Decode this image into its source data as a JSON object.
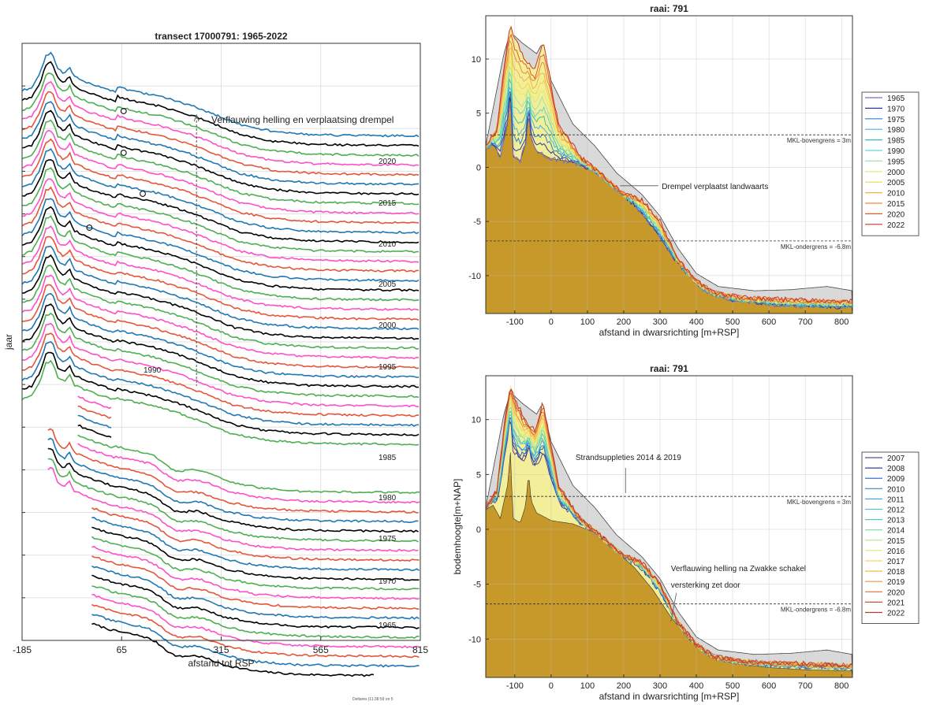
{
  "footer": "Deltares |11:38:59 on 5",
  "chart_data": [
    {
      "id": "transect",
      "type": "line",
      "title": "transect 17000791: 1965-2022",
      "xlabel": "afstand tot RSP",
      "ylabel": "jaar",
      "xticks": [
        -185,
        65,
        315,
        565,
        815
      ],
      "xlim": [
        -185,
        815
      ],
      "year_labels": [
        "2020",
        "2015",
        "2010",
        "2005",
        "2000",
        "1995",
        "1990",
        "1985",
        "1980",
        "1975",
        "1970",
        "1965"
      ],
      "annotation": "Verflauwing helling en verplaatsing drempel",
      "grid": true,
      "series_colors": [
        "#000000",
        "#1f77b4",
        "#e6553a",
        "#ff4fc8",
        "#4caf50"
      ]
    },
    {
      "id": "raai-top",
      "type": "area",
      "title": "raai: 791",
      "xlabel": "afstand in dwarsrichting [m+RSP]",
      "ylabel": "",
      "xticks": [
        -100,
        0,
        100,
        200,
        300,
        400,
        500,
        600,
        700,
        800
      ],
      "yticks": [
        10,
        5,
        0,
        -5,
        -10
      ],
      "xlim": [
        -180,
        830
      ],
      "ylim": [
        -13.5,
        14
      ],
      "hlines": [
        {
          "y": 3,
          "label": "MKL-bovengrens = 3m"
        },
        {
          "y": -6.8,
          "label": "MKL-ondergrens = -6.8m"
        }
      ],
      "annotation": "Drempel verplaatst landwaarts",
      "legend_position": "right",
      "legend": [
        "1965",
        "1970",
        "1975",
        "1980",
        "1985",
        "1990",
        "1995",
        "2000",
        "2005",
        "2010",
        "2015",
        "2020",
        "2022"
      ],
      "legend_colors": [
        "#7b68c8",
        "#2b3a9a",
        "#2c7fd8",
        "#3fb6e6",
        "#35c0b8",
        "#5fd6c9",
        "#9fe3a8",
        "#e5e96a",
        "#f1d54a",
        "#f0b24a",
        "#ec8a3a",
        "#e05a2e",
        "#c8362a"
      ],
      "grid": true
    },
    {
      "id": "raai-bottom",
      "type": "area",
      "title": "raai: 791",
      "xlabel": "afstand in dwarsrichting [m+RSP]",
      "ylabel": "bodemhoogte[m+NAP]",
      "xticks": [
        -100,
        0,
        100,
        200,
        300,
        400,
        500,
        600,
        700,
        800
      ],
      "yticks": [
        10,
        5,
        0,
        -5,
        -10
      ],
      "xlim": [
        -180,
        830
      ],
      "ylim": [
        -13.5,
        14
      ],
      "hlines": [
        {
          "y": 3,
          "label": "MKL-bovengrens = 3m"
        },
        {
          "y": -6.8,
          "label": "MKL-ondergrens = -6.8m"
        }
      ],
      "annotations": [
        "Strandsuppleties 2014 & 2019",
        "Verflauwing helling na Zwakke schakel",
        "versterking zet door"
      ],
      "legend_position": "right",
      "legend": [
        "2007",
        "2008",
        "2009",
        "2010",
        "2011",
        "2012",
        "2013",
        "2014",
        "2015",
        "2016",
        "2017",
        "2018",
        "2019",
        "2020",
        "2021",
        "2022"
      ],
      "legend_colors": [
        "#5a4f8f",
        "#3b3f9e",
        "#2a5fc0",
        "#2c8ad8",
        "#44a9e4",
        "#54c2da",
        "#54cdbb",
        "#7fdca4",
        "#b7e68d",
        "#e4ea74",
        "#f2d75a",
        "#f2b94a",
        "#ee9640",
        "#e4703a",
        "#d24c33",
        "#b83b2e"
      ],
      "grid": true
    }
  ]
}
